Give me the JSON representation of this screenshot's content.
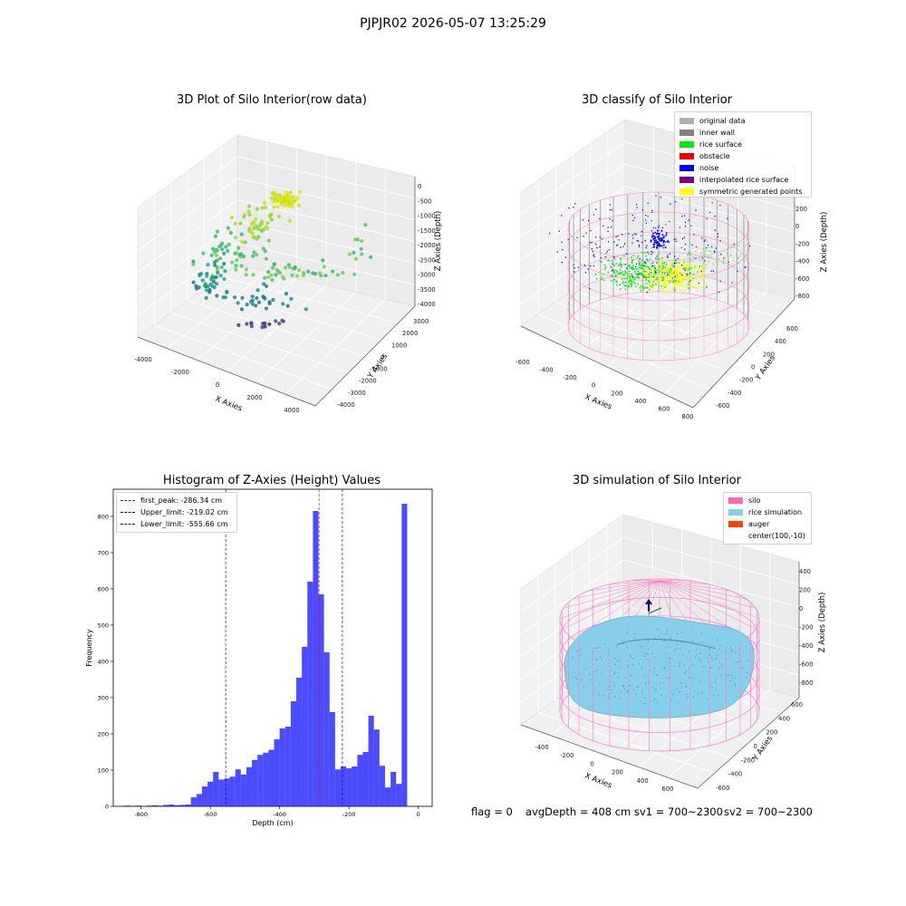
{
  "suptitle": "PJPJR02 2026-05-07 13:25:29",
  "panels": {
    "raw": {
      "title": "3D Plot of Silo Interior(row data)",
      "xlabel": "X Axies",
      "ylabel": "Y Axies",
      "zlabel": "Z Axies (Depth)",
      "xticks": [
        "-4000",
        "-2000",
        "0",
        "2000",
        "4000"
      ],
      "yticks": [
        "3000",
        "2000",
        "1000",
        "0",
        "-1000",
        "-2000",
        "-3000",
        "-4000"
      ],
      "zticks": [
        "0",
        "-500",
        "-1000",
        "-1500",
        "-2000",
        "-2500",
        "-3000",
        "-3500",
        "-4000"
      ]
    },
    "classify": {
      "title": "3D classify of Silo Interior",
      "xlabel": "X Axies",
      "ylabel": "Y Axies",
      "zlabel": "Z Axies (Depth)",
      "xticks": [
        "-600",
        "-400",
        "-200",
        "0",
        "200",
        "400",
        "600",
        "800"
      ],
      "yticks": [
        "600",
        "400",
        "200",
        "0",
        "-200",
        "-400",
        "-600"
      ],
      "zticks": [
        "200",
        "0",
        "-200",
        "-400",
        "-600",
        "-800"
      ],
      "legend": [
        {
          "label": "original data",
          "color": "#b0b0b0"
        },
        {
          "label": "inner wall",
          "color": "#808080"
        },
        {
          "label": "rice surface",
          "color": "#00ee00"
        },
        {
          "label": "obstacle",
          "color": "#ee0000"
        },
        {
          "label": "noise",
          "color": "#0000ee"
        },
        {
          "label": "interpolated rice surface",
          "color": "#800080"
        },
        {
          "label": "symmetric generated points",
          "color": "#ffff00"
        }
      ]
    },
    "simulation": {
      "title": "3D simulation of Silo Interior",
      "xlabel": "X Axies",
      "ylabel": "Y Axies",
      "zlabel": "Z Axies (Depth)",
      "xticks": [
        "-400",
        "-200",
        "0",
        "200",
        "400",
        "600"
      ],
      "yticks": [
        "600",
        "400",
        "200",
        "0",
        "-200",
        "-400",
        "-600"
      ],
      "zticks": [
        "400",
        "200",
        "0",
        "-200",
        "-400",
        "-600",
        "-800"
      ],
      "legend": [
        {
          "label": "silo",
          "color": "#ff69b4"
        },
        {
          "label": "rice simulation",
          "color": "#87ceeb"
        },
        {
          "label": "auger",
          "color": "#ff4500"
        },
        {
          "label": "center(100,-10)",
          "color": ""
        }
      ]
    }
  },
  "chart_data": {
    "type": "bar",
    "title": "Histogram of Z-Axies (Height) Values",
    "xlabel": "Depth (cm)",
    "ylabel": "Frequency",
    "xlim": [
      -880,
      40
    ],
    "ylim": [
      0,
      875
    ],
    "bar_color": "#0000ff",
    "bin_width": 16,
    "bin_starts": [
      -848,
      -832,
      -816,
      -800,
      -784,
      -768,
      -752,
      -736,
      -720,
      -704,
      -688,
      -672,
      -656,
      -640,
      -624,
      -608,
      -592,
      -576,
      -560,
      -544,
      -528,
      -512,
      -496,
      -480,
      -464,
      -448,
      -432,
      -416,
      -400,
      -384,
      -368,
      -352,
      -336,
      -320,
      -304,
      -288,
      -272,
      -256,
      -240,
      -224,
      -208,
      -192,
      -176,
      -160,
      -144,
      -128,
      -112,
      -96,
      -80,
      -64,
      -48,
      -32,
      -16
    ],
    "values": [
      2,
      1,
      2,
      0,
      2,
      3,
      2,
      4,
      5,
      3,
      4,
      5,
      25,
      34,
      55,
      68,
      95,
      74,
      77,
      82,
      102,
      88,
      108,
      128,
      142,
      148,
      156,
      185,
      215,
      220,
      290,
      355,
      440,
      620,
      815,
      585,
      425,
      260,
      102,
      110,
      105,
      110,
      142,
      150,
      250,
      212,
      112,
      52,
      95,
      62,
      835,
      0,
      0
    ],
    "reference_lines": [
      {
        "label": "first_peak: -286.34 cm",
        "x": -286.34,
        "color": "#ff0000"
      },
      {
        "label": "Upper_limit: -219.02 cm",
        "x": -219.02,
        "color": "#0000ff"
      },
      {
        "label": "Lower_limit: -555.66 cm",
        "x": -555.66,
        "color": "#0000ff"
      }
    ],
    "xticks": [
      -800,
      -600,
      -400,
      -200,
      0
    ],
    "yticks": [
      0,
      100,
      200,
      300,
      400,
      500,
      600,
      700,
      800
    ],
    "legend_position": "upper left"
  },
  "footer": {
    "flag": "flag = 0",
    "avg": "avgDepth = 408 cm",
    "sv1": "sv1 = 700~2300",
    "sv2": "sv2 = 700~2300"
  }
}
